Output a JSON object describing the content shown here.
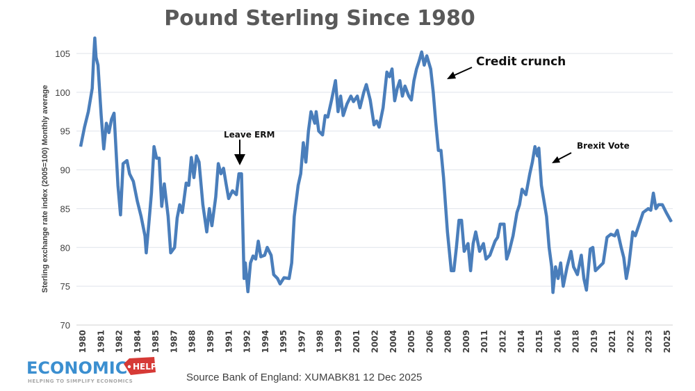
{
  "chart_data": {
    "type": "line",
    "title": "Pound Sterling Since 1980",
    "xlabel": "",
    "ylabel": "Sterling exchange rate index (2005=100) Monthly average",
    "ylim": [
      70,
      105
    ],
    "yticks": [
      70,
      75,
      80,
      85,
      90,
      95,
      100,
      105
    ],
    "xlim": [
      1980,
      2025.9
    ],
    "xtick_labels": [
      "1980",
      "1981",
      "1982",
      "1984",
      "1985",
      "1987",
      "1988",
      "1989",
      "1991",
      "1992",
      "1994",
      "1995",
      "1997",
      "1998",
      "1999",
      "2001",
      "2002",
      "2004",
      "2005",
      "2006",
      "2008",
      "2009",
      "2011",
      "2012",
      "2014",
      "2015",
      "2016",
      "2018",
      "2019",
      "2021",
      "2022",
      "2023",
      "2025"
    ],
    "grid": "horizontal",
    "line_color": "#4a7ebb",
    "series": [
      {
        "x": [
          1980.0,
          1980.3,
          1980.6,
          1980.9,
          1981.0,
          1981.1,
          1981.2,
          1981.35,
          1981.6,
          1981.8,
          1982.0,
          1982.2,
          1982.4,
          1982.6,
          1982.9,
          1983.1,
          1983.3,
          1983.6,
          1983.8,
          1984.1,
          1984.4,
          1984.7,
          1985.0,
          1985.1,
          1985.3,
          1985.5,
          1985.7,
          1985.9,
          1986.1,
          1986.3,
          1986.5,
          1986.8,
          1987.0,
          1987.3,
          1987.5,
          1987.7,
          1987.9,
          1988.2,
          1988.4,
          1988.6,
          1988.8,
          1989.0,
          1989.2,
          1989.5,
          1989.8,
          1990.0,
          1990.2,
          1990.5,
          1990.7,
          1990.9,
          1991.1,
          1991.3,
          1991.5,
          1991.8,
          1992.1,
          1992.3,
          1992.5,
          1992.7,
          1992.8,
          1993.0,
          1993.2,
          1993.4,
          1993.6,
          1993.8,
          1994.0,
          1994.3,
          1994.5,
          1994.8,
          1995.0,
          1995.3,
          1995.5,
          1995.8,
          1996.2,
          1996.4,
          1996.6,
          1996.9,
          1997.1,
          1997.3,
          1997.5,
          1997.7,
          1997.9,
          1998.2,
          1998.3,
          1998.5,
          1998.8,
          1999.0,
          1999.2,
          1999.5,
          1999.8,
          2000.0,
          2000.2,
          2000.4,
          2000.7,
          2001.0,
          2001.2,
          2001.5,
          2001.7,
          2002.0,
          2002.2,
          2002.5,
          2002.8,
          2003.0,
          2003.2,
          2003.5,
          2003.8,
          2004.0,
          2004.2,
          2004.4,
          2004.6,
          2004.8,
          2005.0,
          2005.2,
          2005.5,
          2005.7,
          2005.9,
          2006.1,
          2006.3,
          2006.5,
          2006.7,
          2006.9,
          2007.2,
          2007.4,
          2007.6,
          2007.8,
          2008.0,
          2008.2,
          2008.5,
          2008.8,
          2009.0,
          2009.2,
          2009.4,
          2009.6,
          2009.8,
          2010.1,
          2010.3,
          2010.5,
          2010.7,
          2011.0,
          2011.3,
          2011.5,
          2011.8,
          2012.2,
          2012.4,
          2012.6,
          2012.9,
          2013.1,
          2013.3,
          2013.6,
          2013.9,
          2014.1,
          2014.3,
          2014.6,
          2014.9,
          2015.1,
          2015.3,
          2015.5,
          2015.6,
          2015.8,
          2016.0,
          2016.2,
          2016.4,
          2016.6,
          2016.7,
          2016.9,
          2017.1,
          2017.3,
          2017.5,
          2017.8,
          2018.1,
          2018.3,
          2018.6,
          2018.9,
          2019.1,
          2019.3,
          2019.6,
          2019.8,
          2020.0,
          2020.3,
          2020.6,
          2020.9,
          2021.2,
          2021.5,
          2021.7,
          2022.0,
          2022.2,
          2022.4,
          2022.6,
          2022.9,
          2023.1,
          2023.4,
          2023.7,
          2024.1,
          2024.3,
          2024.5,
          2024.7,
          2024.9,
          2025.2,
          2025.5,
          2025.9
        ],
        "values": [
          93,
          95.5,
          97.5,
          100.5,
          104,
          107,
          104.5,
          103.5,
          97,
          92.7,
          96,
          94.8,
          96.5,
          97.3,
          88,
          84.2,
          90.8,
          91.2,
          89.5,
          88.5,
          86,
          84,
          81.5,
          79.3,
          83,
          87,
          93,
          91.5,
          91.5,
          85.3,
          88.2,
          84,
          79.3,
          80,
          83.8,
          85.5,
          84.5,
          88.3,
          88,
          91.6,
          89,
          91.8,
          91,
          85.5,
          82,
          85,
          82.8,
          86.5,
          90.8,
          89.5,
          90.2,
          88.2,
          86.3,
          87.3,
          86.8,
          89.5,
          89.5,
          76,
          78,
          74.3,
          78,
          78.9,
          78.5,
          80.8,
          78.8,
          79,
          80,
          79,
          76.5,
          76,
          75.3,
          76.1,
          76,
          78,
          84,
          88,
          89.5,
          93.5,
          91,
          95,
          97.5,
          96,
          97.5,
          95,
          94.5,
          97,
          96.8,
          99,
          101.5,
          97.5,
          99.5,
          97,
          98.5,
          99.5,
          98.8,
          99.5,
          98,
          100,
          101,
          99,
          95.8,
          96.3,
          95.5,
          98,
          102.6,
          102,
          103,
          98.9,
          100.5,
          101.5,
          99.5,
          100.8,
          99.5,
          99,
          101.5,
          103,
          104,
          105.2,
          103.5,
          104.7,
          103,
          100,
          96,
          92.5,
          92.5,
          89,
          82,
          77,
          77,
          80,
          83.5,
          83.5,
          79.5,
          80.5,
          77,
          80.5,
          82,
          79.5,
          80.5,
          78.5,
          79,
          80.8,
          81.3,
          83,
          83,
          78.5,
          79.5,
          81.5,
          84.5,
          85.5,
          87.5,
          86.8,
          89.5,
          91,
          93,
          91.8,
          92.8,
          88,
          86,
          84,
          80,
          77.5,
          74.2,
          77.5,
          76,
          78,
          75,
          77.5,
          79.5,
          77.5,
          76.5,
          79,
          76,
          74.5,
          79.8,
          80,
          77,
          77.5,
          78,
          81.3,
          81.7,
          81.5,
          82.2,
          80,
          78.7,
          76,
          77.8,
          82,
          81.5,
          83,
          84.5,
          85,
          84.8,
          87,
          85,
          85.5,
          85.5,
          84.5,
          83.3
        ]
      }
    ],
    "annotations": [
      {
        "text": "Leave ERM",
        "x": 1992.5,
        "y": 89.5
      },
      {
        "text": "Credit crunch",
        "x": 2007.4,
        "y": 101
      },
      {
        "text": "Brexit Vote",
        "x": 2015.8,
        "y": 91
      }
    ]
  },
  "footer": {
    "source": "Source Bank of England: XUMABK81 12 Dec 2025",
    "logo_main": "ECONOMICS",
    "logo_help": "HELP",
    "logo_tagline": "HELPING TO SIMPLIFY ECONOMICS"
  }
}
